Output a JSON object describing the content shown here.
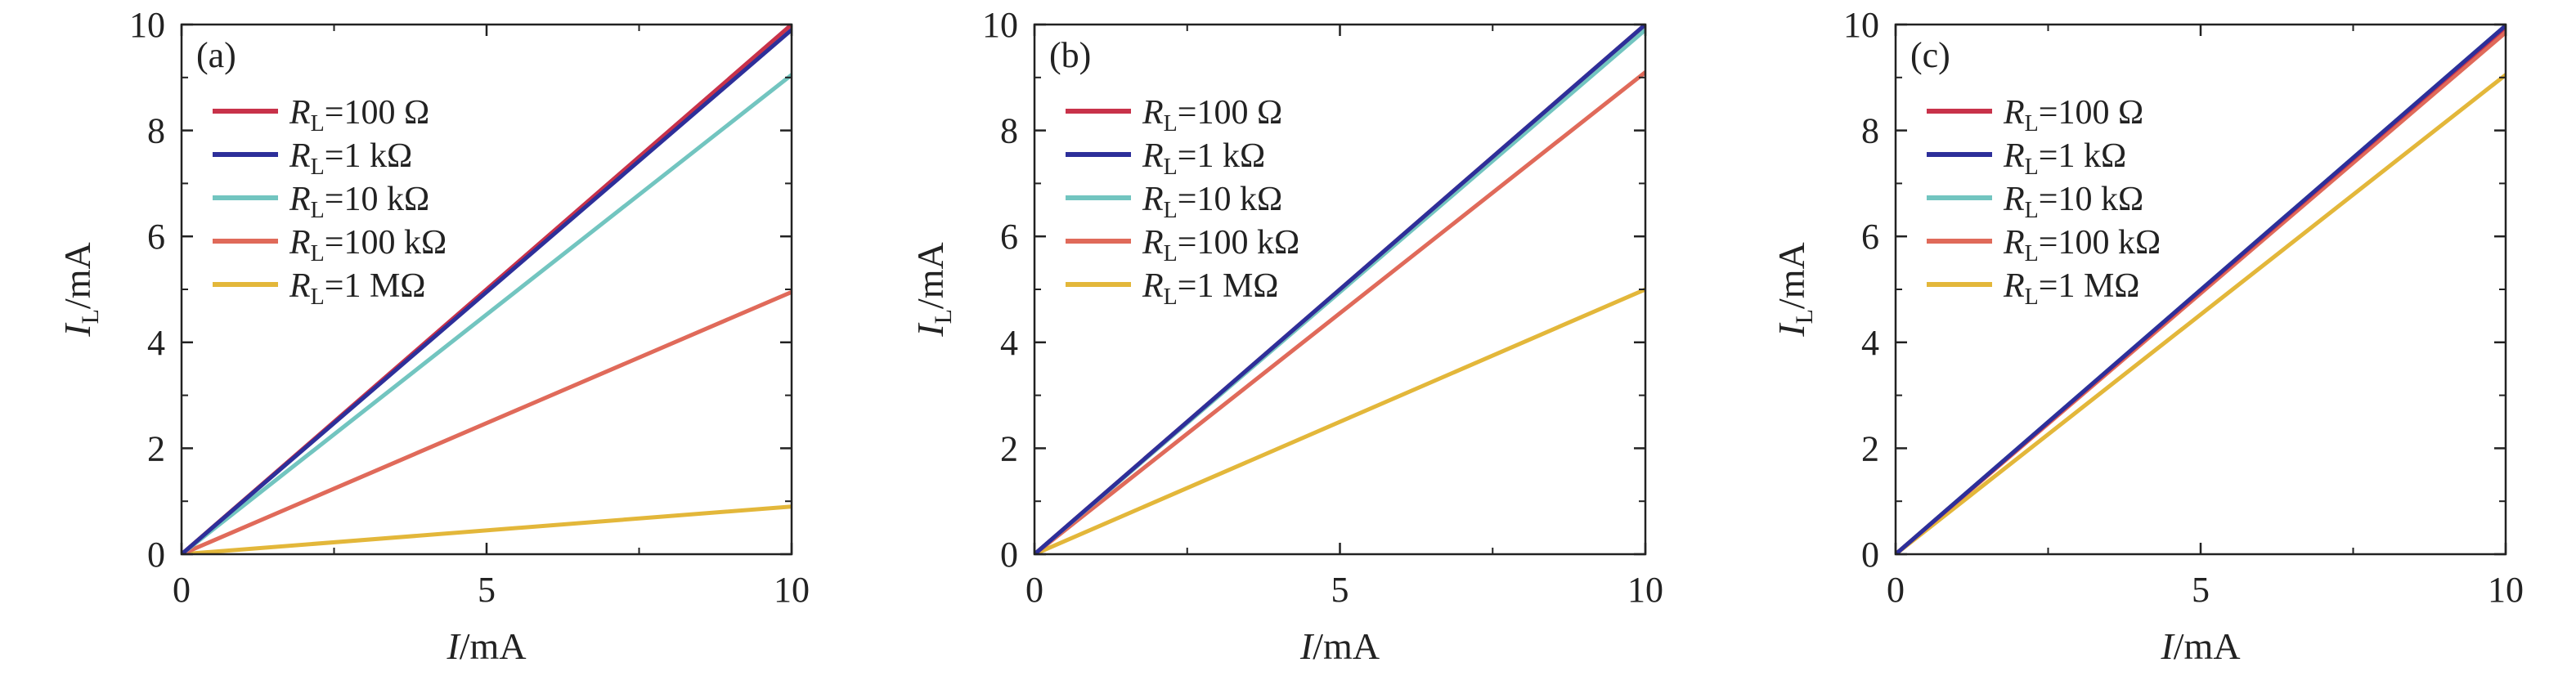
{
  "colors": {
    "r100": "#c8324a",
    "r1k": "#2d2f9a",
    "r10k": "#72c5c0",
    "r100k": "#e06a5a",
    "r1M": "#e3b73a"
  },
  "legend_entries": [
    {
      "key": "r100",
      "sym": "R",
      "sub": "L",
      "text": "=100 Ω"
    },
    {
      "key": "r1k",
      "sym": "R",
      "sub": "L",
      "text": "=1 kΩ"
    },
    {
      "key": "r10k",
      "sym": "R",
      "sub": "L",
      "text": "=10 kΩ"
    },
    {
      "key": "r100k",
      "sym": "R",
      "sub": "L",
      "text": "=100 kΩ"
    },
    {
      "key": "r1M",
      "sym": "R",
      "sub": "L",
      "text": "=1 MΩ"
    }
  ],
  "chart_data": [
    {
      "type": "line",
      "panel_label": "(a)",
      "xlabel": {
        "sym": "I",
        "text": "/mA"
      },
      "ylabel": {
        "sym": "I",
        "sub": "L",
        "text": "/mA"
      },
      "xlim": [
        0,
        10
      ],
      "ylim": [
        0,
        10
      ],
      "xticks": [
        0,
        5,
        10
      ],
      "yticks": [
        0,
        2,
        4,
        6,
        8,
        10
      ],
      "legend_position": "top-left",
      "series": [
        {
          "key": "r1M",
          "x": [
            0,
            10
          ],
          "y": [
            0,
            0.9
          ]
        },
        {
          "key": "r100k",
          "x": [
            0,
            10
          ],
          "y": [
            0,
            4.95
          ]
        },
        {
          "key": "r10k",
          "x": [
            0,
            10
          ],
          "y": [
            0,
            9.05
          ]
        },
        {
          "key": "r100",
          "x": [
            0,
            10
          ],
          "y": [
            0,
            10.0
          ]
        },
        {
          "key": "r1k",
          "x": [
            0,
            10
          ],
          "y": [
            0,
            9.9
          ]
        }
      ]
    },
    {
      "type": "line",
      "panel_label": "(b)",
      "xlabel": {
        "sym": "I",
        "text": "/mA"
      },
      "ylabel": {
        "sym": "I",
        "sub": "L",
        "text": "/mA"
      },
      "xlim": [
        0,
        10
      ],
      "ylim": [
        0,
        10
      ],
      "xticks": [
        0,
        5,
        10
      ],
      "yticks": [
        0,
        2,
        4,
        6,
        8,
        10
      ],
      "legend_position": "top-left",
      "series": [
        {
          "key": "r1M",
          "x": [
            0,
            10
          ],
          "y": [
            0,
            5.0
          ]
        },
        {
          "key": "r100k",
          "x": [
            0,
            10
          ],
          "y": [
            0,
            9.1
          ]
        },
        {
          "key": "r10k",
          "x": [
            0,
            10
          ],
          "y": [
            0,
            9.9
          ]
        },
        {
          "key": "r100",
          "x": [
            0,
            10
          ],
          "y": [
            0,
            10.0
          ]
        },
        {
          "key": "r1k",
          "x": [
            0,
            10
          ],
          "y": [
            0,
            10.0
          ]
        }
      ]
    },
    {
      "type": "line",
      "panel_label": "(c)",
      "xlabel": {
        "sym": "I",
        "text": "/mA"
      },
      "ylabel": {
        "sym": "I",
        "sub": "L",
        "text": "/mA"
      },
      "xlim": [
        0,
        10
      ],
      "ylim": [
        0,
        10
      ],
      "xticks": [
        0,
        5,
        10
      ],
      "yticks": [
        0,
        2,
        4,
        6,
        8,
        10
      ],
      "legend_position": "top-left",
      "series": [
        {
          "key": "r1M",
          "x": [
            0,
            10
          ],
          "y": [
            0,
            9.05
          ]
        },
        {
          "key": "r100k",
          "x": [
            0,
            10
          ],
          "y": [
            0,
            9.85
          ]
        },
        {
          "key": "r100",
          "x": [
            0,
            10
          ],
          "y": [
            0,
            9.95
          ]
        },
        {
          "key": "r1k",
          "x": [
            0,
            10
          ],
          "y": [
            0,
            9.98
          ]
        },
        {
          "key": "r10k",
          "x": [
            0,
            10
          ],
          "y": [
            0,
            9.98
          ]
        }
      ]
    }
  ]
}
